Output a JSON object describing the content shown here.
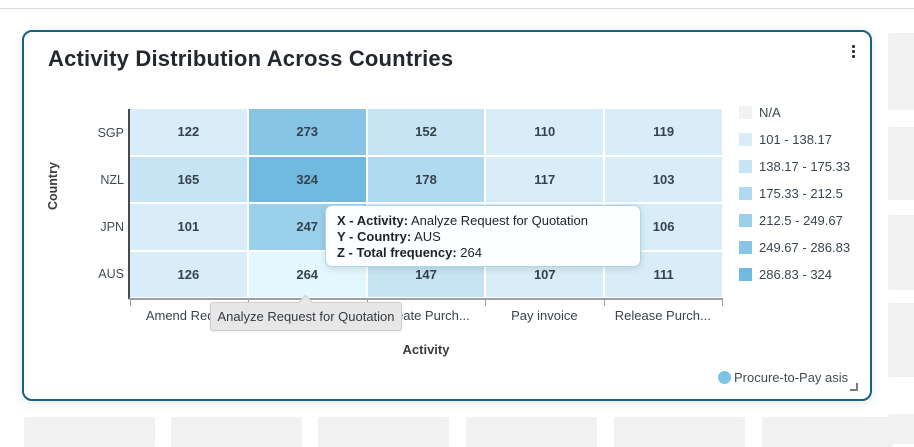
{
  "card": {
    "title": "Activity Distribution Across Countries"
  },
  "chart_data": {
    "type": "heatmap",
    "title": "Activity Distribution Across Countries",
    "xlabel": "Activity",
    "ylabel": "Country",
    "x_categories": [
      "Amend Requ...",
      "Analyze Req...",
      "Create Purch...",
      "Pay invoice",
      "Release Purch..."
    ],
    "y_categories": [
      "SGP",
      "NZL",
      "JPN",
      "AUS"
    ],
    "values": [
      [
        122,
        273,
        152,
        110,
        119
      ],
      [
        165,
        324,
        178,
        117,
        103
      ],
      [
        101,
        247,
        null,
        null,
        106
      ],
      [
        126,
        264,
        147,
        107,
        111
      ]
    ],
    "value_edges": [
      101,
      138.17,
      175.33,
      212.5,
      249.67,
      286.83,
      324
    ],
    "legend_position": "right",
    "legend": [
      {
        "label": "N/A",
        "color": "#f2f2f2"
      },
      {
        "label": "101 - 138.17",
        "color": "#d9edf8"
      },
      {
        "label": "138.17 - 175.33",
        "color": "#c6e4f4"
      },
      {
        "label": "175.33 - 212.5",
        "color": "#b0daf0"
      },
      {
        "label": "212.5 - 249.67",
        "color": "#9bd0ea"
      },
      {
        "label": "249.67 - 286.83",
        "color": "#86c5e5"
      },
      {
        "label": "286.83 - 324",
        "color": "#71badf"
      }
    ],
    "series_legend": {
      "label": "Procure-to-Pay asis",
      "color": "#7cc3e8"
    },
    "highlighted_cell": {
      "row": 3,
      "col": 1,
      "color": "#e3f8fe"
    }
  },
  "tooltip": {
    "lines": [
      {
        "label": "X - Activity:",
        "value": "Analyze Request for Quotation"
      },
      {
        "label": "Y - Country:",
        "value": "AUS"
      },
      {
        "label": "Z - Total frequency:",
        "value": "264"
      }
    ]
  },
  "axis_popup": {
    "text": "Analyze Request for Quotation"
  },
  "colors": {
    "card_border": "#17617c",
    "hidden_cell": "#d9edf8"
  }
}
